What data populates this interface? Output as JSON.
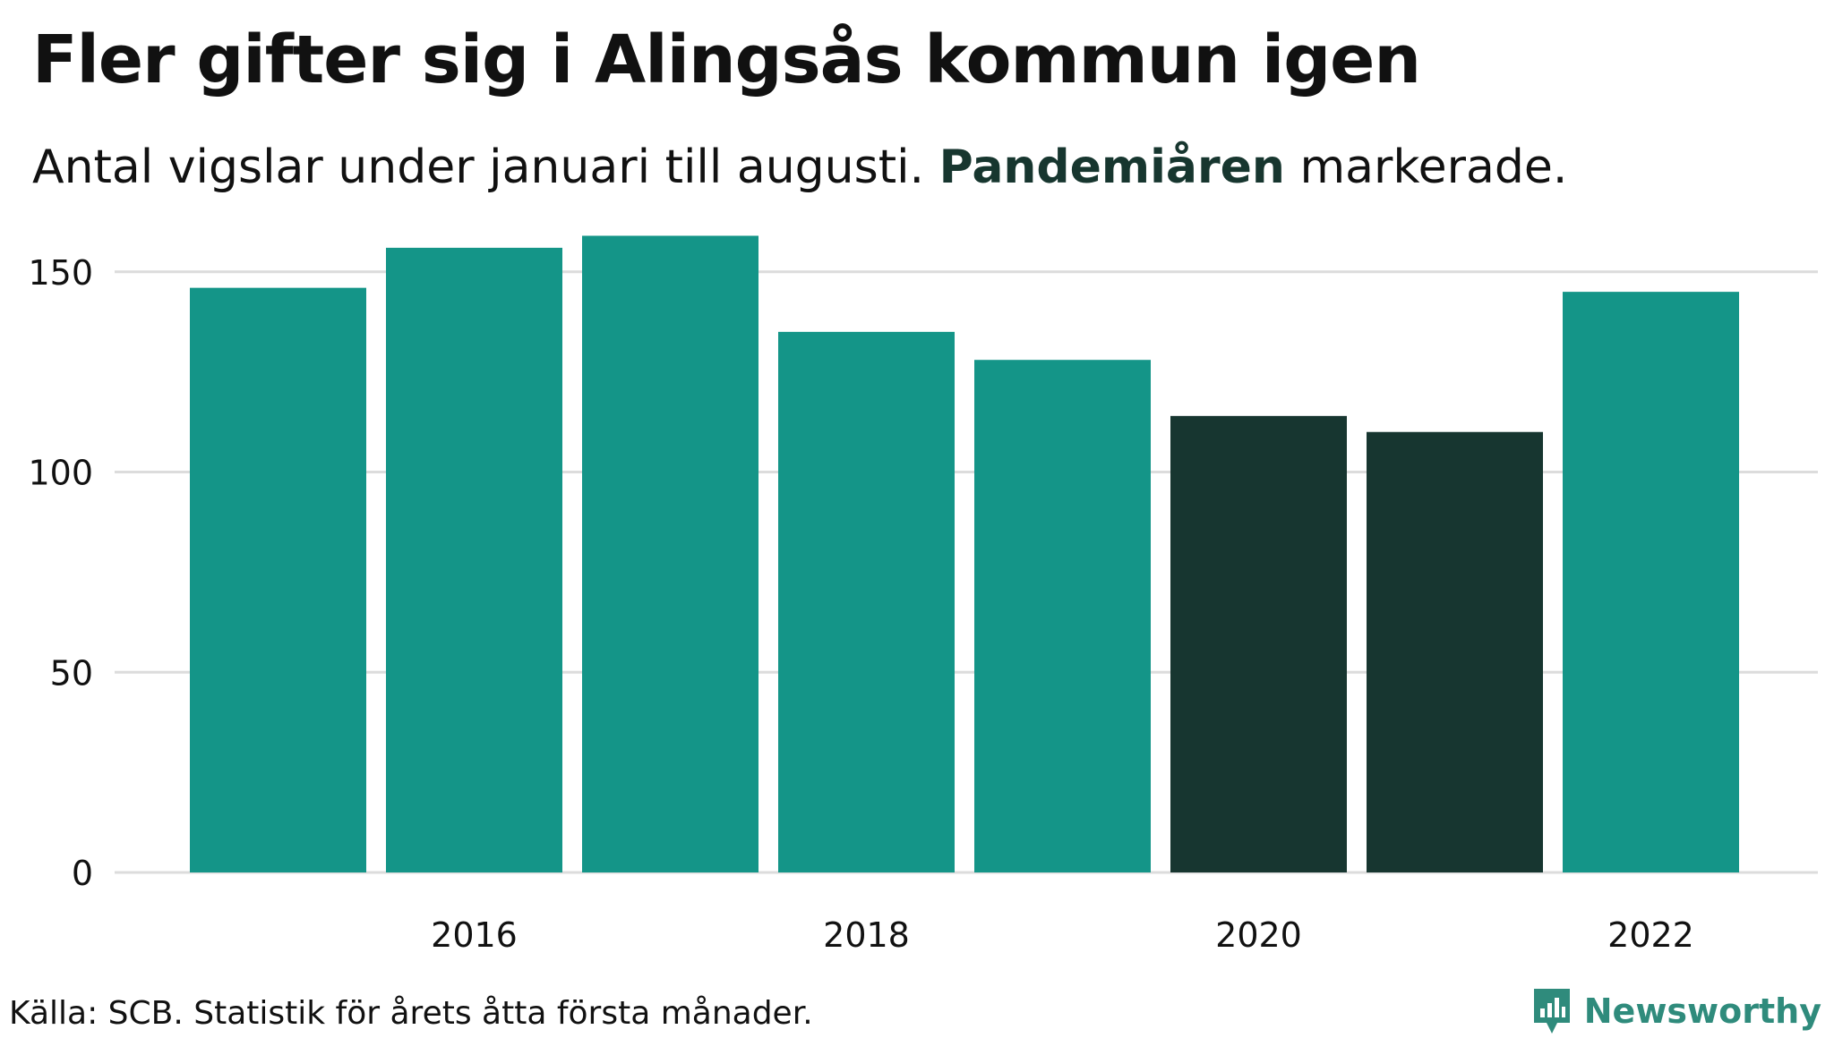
{
  "header": {
    "title": "Fler gifter sig i Alingsås kommun igen",
    "subtitle_before": "Antal vigslar under januari till augusti. ",
    "subtitle_highlight": "Pandemiåren",
    "subtitle_after": " markerade."
  },
  "footer": {
    "source": "Källa: SCB. Statistik för årets åtta första månader.",
    "brand": "Newsworthy",
    "brand_icon": "bar-chart-icon"
  },
  "colors": {
    "bar_default": "#149588",
    "bar_highlight": "#173630",
    "grid": "#dcdcdc",
    "brand": "#2f8b7c"
  },
  "chart_data": {
    "type": "bar",
    "title": "Fler gifter sig i Alingsås kommun igen",
    "subtitle": "Antal vigslar under januari till augusti. Pandemiåren markerade.",
    "xlabel": "",
    "ylabel": "",
    "categories": [
      2015,
      2016,
      2017,
      2018,
      2019,
      2020,
      2021,
      2022
    ],
    "values": [
      146,
      156,
      159,
      135,
      128,
      114,
      110,
      145
    ],
    "highlighted": [
      2020,
      2021
    ],
    "ylim": [
      0,
      160
    ],
    "yticks": [
      0,
      50,
      100,
      150
    ],
    "xticks": [
      2016,
      2018,
      2020,
      2022
    ],
    "grid": true,
    "legend": "none"
  }
}
